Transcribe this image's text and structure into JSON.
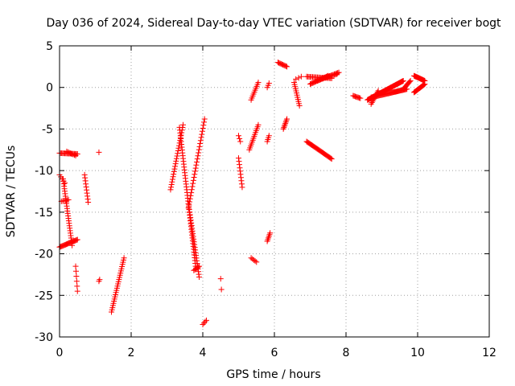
{
  "chart_data": {
    "type": "scatter",
    "title": "Day 036 of 2024, Sidereal Day-to-day VTEC variation (SDTVAR) for receiver bogt",
    "xlabel": "GPS time / hours",
    "ylabel": "SDTVAR / TECUs",
    "xlim": [
      0,
      12
    ],
    "ylim": [
      -30,
      5
    ],
    "xticks": [
      0,
      2,
      4,
      6,
      8,
      10,
      12
    ],
    "yticks": [
      5,
      0,
      -5,
      -10,
      -15,
      -20,
      -25,
      -30
    ],
    "grid": true,
    "marker": "+",
    "series": [
      {
        "name": "SDTVAR",
        "color": "#ff0000",
        "segments": [
          {
            "x0": 0.0,
            "y0": -7.9,
            "x1": 0.5,
            "y1": -8.0,
            "n": 18
          },
          {
            "x0": 0.2,
            "y0": -7.7,
            "x1": 0.45,
            "y1": -8.2,
            "n": 8
          },
          {
            "x0": 0.0,
            "y0": -10.5,
            "x1": 0.15,
            "y1": -11.5,
            "n": 5
          },
          {
            "x0": 0.05,
            "y0": -13.7,
            "x1": 0.25,
            "y1": -13.5,
            "n": 6
          },
          {
            "x0": 0.1,
            "y0": -11.0,
            "x1": 0.35,
            "y1": -19.0,
            "n": 28
          },
          {
            "x0": 0.0,
            "y0": -19.2,
            "x1": 0.5,
            "y1": -18.3,
            "n": 22
          },
          {
            "x0": 0.45,
            "y0": -21.5,
            "x1": 0.5,
            "y1": -24.5,
            "n": 6
          },
          {
            "x0": 0.7,
            "y0": -10.5,
            "x1": 0.8,
            "y1": -13.8,
            "n": 10
          },
          {
            "x0": 1.1,
            "y0": -7.8,
            "x1": 1.1,
            "y1": -7.8,
            "n": 1
          },
          {
            "x0": 1.1,
            "y0": -23.3,
            "x1": 1.12,
            "y1": -23.1,
            "n": 2
          },
          {
            "x0": 1.45,
            "y0": -27.0,
            "x1": 1.8,
            "y1": -20.5,
            "n": 26
          },
          {
            "x0": 3.1,
            "y0": -12.3,
            "x1": 3.45,
            "y1": -4.5,
            "n": 26
          },
          {
            "x0": 3.35,
            "y0": -4.8,
            "x1": 3.8,
            "y1": -21.5,
            "n": 50
          },
          {
            "x0": 3.6,
            "y0": -14.0,
            "x1": 3.9,
            "y1": -22.8,
            "n": 28
          },
          {
            "x0": 3.75,
            "y0": -22.0,
            "x1": 3.9,
            "y1": -21.5,
            "n": 6
          },
          {
            "x0": 3.6,
            "y0": -14.5,
            "x1": 4.05,
            "y1": -3.8,
            "n": 30
          },
          {
            "x0": 4.0,
            "y0": -28.5,
            "x1": 4.1,
            "y1": -28.0,
            "n": 4
          },
          {
            "x0": 4.5,
            "y0": -23.0,
            "x1": 4.52,
            "y1": -24.3,
            "n": 2
          },
          {
            "x0": 5.0,
            "y0": -5.8,
            "x1": 5.05,
            "y1": -6.5,
            "n": 3
          },
          {
            "x0": 5.0,
            "y0": -8.5,
            "x1": 5.1,
            "y1": -12.0,
            "n": 10
          },
          {
            "x0": 5.3,
            "y0": -7.5,
            "x1": 5.55,
            "y1": -4.5,
            "n": 14
          },
          {
            "x0": 5.35,
            "y0": -1.5,
            "x1": 5.55,
            "y1": 0.6,
            "n": 10
          },
          {
            "x0": 5.35,
            "y0": -20.5,
            "x1": 5.5,
            "y1": -21.0,
            "n": 5
          },
          {
            "x0": 5.8,
            "y0": -6.5,
            "x1": 5.85,
            "y1": -5.8,
            "n": 4
          },
          {
            "x0": 5.8,
            "y0": 0.0,
            "x1": 5.85,
            "y1": 0.5,
            "n": 3
          },
          {
            "x0": 5.8,
            "y0": -18.5,
            "x1": 5.88,
            "y1": -17.5,
            "n": 6
          },
          {
            "x0": 6.1,
            "y0": 3.0,
            "x1": 6.35,
            "y1": 2.5,
            "n": 10
          },
          {
            "x0": 6.25,
            "y0": -5.0,
            "x1": 6.35,
            "y1": -3.8,
            "n": 8
          },
          {
            "x0": 6.55,
            "y0": 0.6,
            "x1": 6.7,
            "y1": -2.2,
            "n": 12
          },
          {
            "x0": 6.6,
            "y0": 1.0,
            "x1": 6.75,
            "y1": 1.3,
            "n": 3
          },
          {
            "x0": 6.9,
            "y0": -6.5,
            "x1": 7.6,
            "y1": -8.6,
            "n": 30
          },
          {
            "x0": 6.9,
            "y0": 1.3,
            "x1": 7.6,
            "y1": 1.1,
            "n": 22
          },
          {
            "x0": 7.0,
            "y0": 0.4,
            "x1": 7.5,
            "y1": 1.4,
            "n": 20
          },
          {
            "x0": 7.2,
            "y0": 0.8,
            "x1": 7.8,
            "y1": 1.8,
            "n": 20
          },
          {
            "x0": 7.5,
            "y0": 1.3,
            "x1": 7.75,
            "y1": 1.6,
            "n": 8
          },
          {
            "x0": 8.2,
            "y0": -1.0,
            "x1": 8.4,
            "y1": -1.3,
            "n": 8
          },
          {
            "x0": 8.6,
            "y0": -1.5,
            "x1": 9.6,
            "y1": 0.8,
            "n": 60
          },
          {
            "x0": 8.7,
            "y0": -1.2,
            "x1": 9.7,
            "y1": -0.2,
            "n": 45
          },
          {
            "x0": 8.7,
            "y0": -2.0,
            "x1": 8.9,
            "y1": -0.4,
            "n": 10
          },
          {
            "x0": 9.6,
            "y0": -0.2,
            "x1": 9.8,
            "y1": 0.8,
            "n": 10
          },
          {
            "x0": 9.9,
            "y0": 1.4,
            "x1": 10.2,
            "y1": 0.8,
            "n": 18
          },
          {
            "x0": 9.9,
            "y0": -0.6,
            "x1": 10.2,
            "y1": 0.4,
            "n": 18
          }
        ]
      }
    ]
  }
}
